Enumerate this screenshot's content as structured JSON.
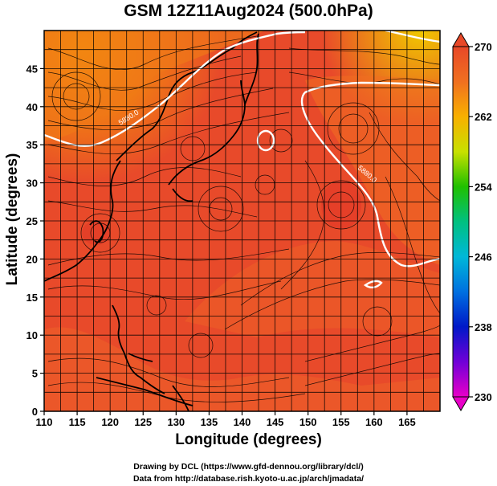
{
  "title": "GSM 12Z11Aug2024 (500.0hPa)",
  "xlabel": "Longitude (degrees)",
  "ylabel": "Latitude (degrees)",
  "x_ticks": [
    "110",
    "115",
    "120",
    "125",
    "130",
    "135",
    "140",
    "145",
    "150",
    "155",
    "160",
    "165"
  ],
  "y_ticks": [
    "0",
    "5",
    "10",
    "15",
    "20",
    "25",
    "30",
    "35",
    "40",
    "45"
  ],
  "colorbar": {
    "ticks": [
      "230",
      "238",
      "246",
      "254",
      "262",
      "270"
    ],
    "min": 230,
    "max": 270,
    "colors": [
      "#e800c8",
      "#7800d8",
      "#0018c8",
      "#0088e0",
      "#00c0c0",
      "#00c080",
      "#10c000",
      "#88d800",
      "#e8e800",
      "#f8b000",
      "#f07820",
      "#e84828"
    ]
  },
  "contour_labels": [
    "5880.0",
    "5880.0"
  ],
  "credits": [
    "Drawing by DCL (https://www.gfd-dennou.org/library/dcl/)",
    "Data from http://database.rish.kyoto-u.ac.jp/arch/jmadata/"
  ],
  "chart_data": {
    "type": "heatmap",
    "title": "GSM 12Z11Aug2024 (500.0hPa)",
    "xlabel": "Longitude (degrees)",
    "ylabel": "Latitude (degrees)",
    "xlim": [
      110,
      170
    ],
    "ylim": [
      0,
      50
    ],
    "colorbar_range": [
      230,
      270
    ],
    "contour_level": 5880.0,
    "grid": true
  }
}
